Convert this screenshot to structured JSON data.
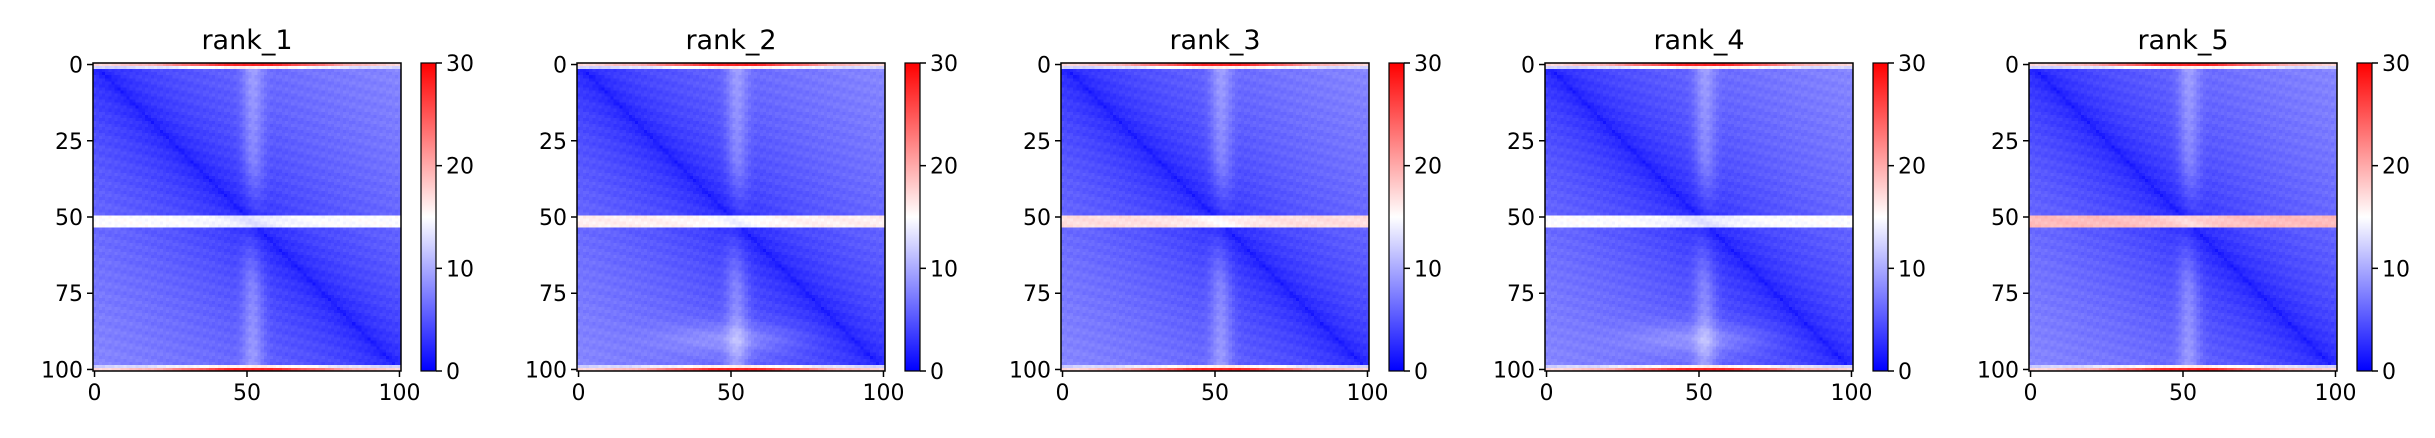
{
  "chart_data": {
    "type": "heatmap",
    "colormap": "bwr",
    "colormap_colors": [
      "#0000ff",
      "#ffffff",
      "#ff0000"
    ],
    "colorbar": {
      "range": [
        0,
        30
      ],
      "ticks": [
        0,
        10,
        20,
        30
      ],
      "tick_labels": [
        "0",
        "10",
        "20",
        "30"
      ]
    },
    "panels": [
      {
        "title": "rank_1",
        "bright_rows": [
          0,
          1,
          99,
          100
        ],
        "band_rows": [
          50,
          51,
          52,
          53
        ],
        "band_value": 15,
        "low_bulge": false
      },
      {
        "title": "rank_2",
        "bright_rows": [
          0,
          1,
          99,
          100
        ],
        "band_rows": [
          50,
          51,
          52,
          53
        ],
        "band_value": 16,
        "low_bulge": true
      },
      {
        "title": "rank_3",
        "bright_rows": [
          0,
          1,
          99,
          100
        ],
        "band_rows": [
          50,
          51,
          52,
          53
        ],
        "band_value": 17,
        "low_bulge": false
      },
      {
        "title": "rank_4",
        "bright_rows": [
          0,
          1,
          99,
          100
        ],
        "band_rows": [
          50,
          51,
          52,
          53
        ],
        "band_value": 15,
        "low_bulge": true
      },
      {
        "title": "rank_5",
        "bright_rows": [
          0,
          1,
          99,
          100
        ],
        "band_rows": [
          50,
          51,
          52,
          53
        ],
        "band_value": 19,
        "low_bulge": false
      }
    ],
    "matrix_size": 101,
    "x_ticks": [
      0,
      50,
      100
    ],
    "y_ticks": [
      0,
      25,
      50,
      75,
      100
    ],
    "xlim": [
      0,
      101
    ],
    "ylim": [
      101,
      0
    ]
  }
}
